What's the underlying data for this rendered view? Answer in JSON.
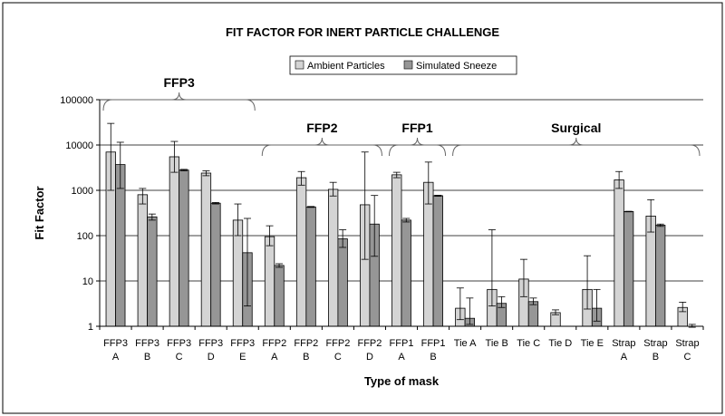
{
  "chart_data": {
    "type": "bar",
    "title": "FIT FACTOR FOR INERT PARTICLE CHALLENGE",
    "xlabel": "Type of mask",
    "ylabel": "Fit Factor",
    "y_scale": "log",
    "ylim": [
      1,
      100000
    ],
    "y_ticks": [
      "1",
      "10",
      "100",
      "1000",
      "10000",
      "100000"
    ],
    "legend_position": "top-center",
    "grid": "horizontal",
    "categories": [
      [
        "FFP3",
        "A"
      ],
      [
        "FFP3",
        "B"
      ],
      [
        "FFP3",
        "C"
      ],
      [
        "FFP3",
        "D"
      ],
      [
        "FFP3",
        "E"
      ],
      [
        "FFP2",
        "A"
      ],
      [
        "FFP2",
        "B"
      ],
      [
        "FFP2",
        "C"
      ],
      [
        "FFP2",
        "D"
      ],
      [
        "FFP1",
        "A"
      ],
      [
        "FFP1",
        "B"
      ],
      [
        "Tie A",
        ""
      ],
      [
        "Tie B",
        ""
      ],
      [
        "Tie C",
        ""
      ],
      [
        "Tie D",
        ""
      ],
      [
        "Tie E",
        ""
      ],
      [
        "Strap",
        "A"
      ],
      [
        "Strap",
        "B"
      ],
      [
        "Strap",
        "C"
      ]
    ],
    "series": [
      {
        "name": "Ambient Particles",
        "color": "#d4d4d4",
        "values": [
          7000,
          800,
          5500,
          2400,
          220,
          95,
          1900,
          1050,
          480,
          2200,
          1500,
          2.5,
          6.5,
          11,
          2.0,
          6.5,
          1700,
          270,
          2.6
        ],
        "err_upper": [
          30000,
          1100,
          12000,
          2700,
          500,
          165,
          2600,
          1500,
          7000,
          2500,
          4200,
          7,
          135,
          30,
          2.3,
          36,
          2600,
          620,
          3.4
        ],
        "err_lower": [
          1000,
          500,
          2500,
          2100,
          100,
          60,
          1300,
          750,
          30,
          1900,
          500,
          1.4,
          2.8,
          4.5,
          1.8,
          2.4,
          1100,
          120,
          2.1
        ]
      },
      {
        "name": "Simulated Sneeze",
        "color": "#969696",
        "values": [
          3700,
          260,
          2800,
          520,
          42,
          22,
          430,
          85,
          180,
          220,
          760,
          1.5,
          3.2,
          3.5,
          null,
          2.5,
          340,
          170,
          1.0
        ],
        "err_upper": [
          11500,
          300,
          2900,
          540,
          240,
          24,
          440,
          135,
          770,
          240,
          780,
          4.2,
          4.5,
          4.2,
          null,
          6.5,
          345,
          180,
          1.1
        ],
        "err_lower": [
          1100,
          220,
          2700,
          500,
          2.8,
          20,
          420,
          55,
          35,
          200,
          740,
          1.1,
          2.6,
          3.0,
          null,
          1.3,
          335,
          160,
          0.95
        ]
      }
    ],
    "group_labels": [
      {
        "text": "FFP3",
        "from": 0,
        "to": 4,
        "brace_level": 100000
      },
      {
        "text": "FFP2",
        "from": 5,
        "to": 8,
        "brace_level": 10000
      },
      {
        "text": "FFP1",
        "from": 9,
        "to": 10,
        "brace_level": 10000
      },
      {
        "text": "Surgical",
        "from": 11,
        "to": 18,
        "brace_level": 10000
      }
    ]
  }
}
